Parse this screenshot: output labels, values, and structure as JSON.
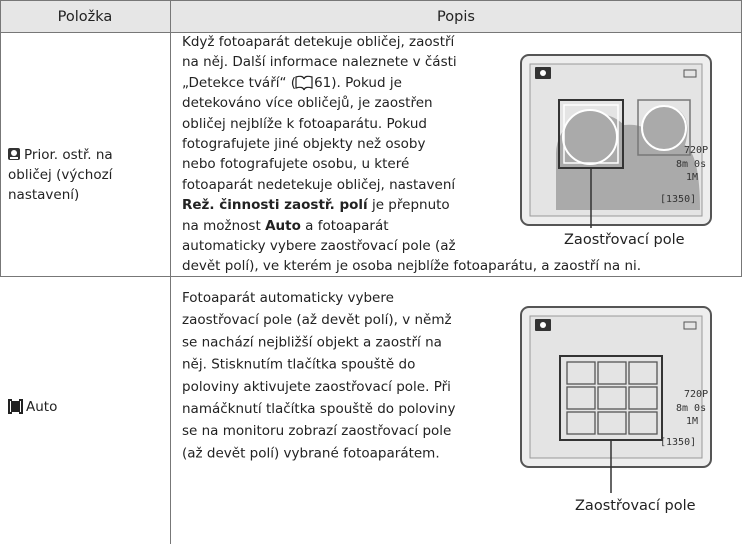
{
  "table": {
    "header": [
      "Položka",
      "Popis"
    ],
    "rows": [
      {
        "item_lines": [
          "Prior. ostř. na",
          "obličej (výchozí",
          "nastavení)"
        ],
        "description": {
          "line1": "Když fotoaparát detekuje obličej, zaostří",
          "line2": "na něj. Další informace naleznete v části",
          "line3a": "„Detekce tváří“ (",
          "line3b": "61). Pokud je",
          "line4": "detekováno více obličejů, je zaostřen",
          "line5": "obličej nejblíže k fotoaparátu. Pokud",
          "line6": "fotografujete jiné objekty než osoby",
          "line7": "nebo fotografujete osobu, u které",
          "line8": "fotoaparát nedetekuje obličej, nastavení",
          "line9a": "Rež. činnosti zaostř. polí",
          "line9b": " je přepnuto",
          "line10a": "na možnost ",
          "line10b": "Auto",
          "line10c": " a fotoaparát",
          "line11": "automaticky vybere zaostřovací pole (až",
          "line12": "devět polí), ve kterém je osoba nejblíže fotoaparátu, a zaostří na ni."
        },
        "screen": {
          "resolution": "720",
          "mode": "P",
          "time": "8m 0s",
          "size": "1M",
          "count": "[1350]"
        },
        "caption": "Zaostřovací pole"
      },
      {
        "item_lines": [
          "Auto"
        ],
        "description": {
          "lines": [
            "Fotoaparát automaticky vybere",
            "zaostřovací pole (až devět polí), v němž",
            "se nachází nejbližší objekt a zaostří na",
            "něj. Stisknutím tlačítka spouště do",
            "poloviny aktivujete zaostřovací pole. Při",
            "namáčknutí tlačítka spouště do poloviny",
            "se na monitoru zobrazí zaostřovací pole",
            "(až devět polí) vybrané fotoaparátem."
          ]
        },
        "screen": {
          "resolution": "720",
          "mode": "P",
          "time": "8m 0s",
          "size": "1M",
          "count": "[1350]"
        },
        "caption": "Zaostřovací pole"
      }
    ]
  }
}
